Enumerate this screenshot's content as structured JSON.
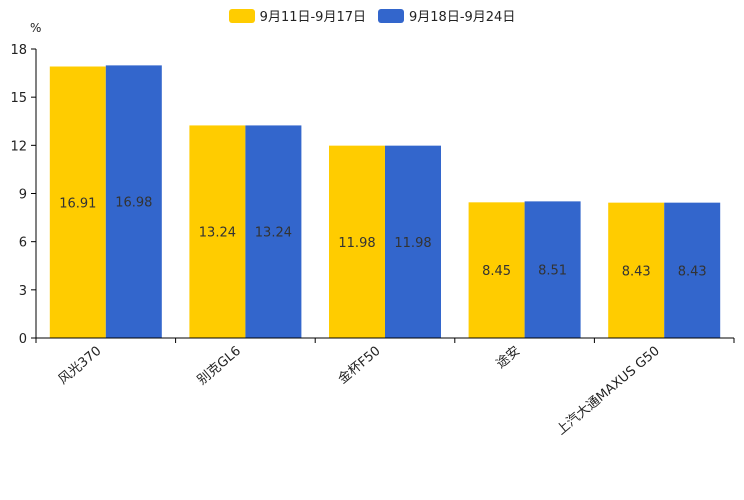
{
  "chart_data": {
    "type": "bar",
    "unit": "%",
    "categories": [
      "风光370",
      "别克GL6",
      "金杯F50",
      "途安",
      "上汽大通MAXUS G50"
    ],
    "series": [
      {
        "name": "9月11日-9月17日",
        "color": "#FFCC00",
        "values": [
          16.91,
          13.24,
          11.98,
          8.45,
          8.43
        ],
        "labels": [
          "16.91",
          "13.24",
          "11.98",
          "8.45",
          "8.43"
        ]
      },
      {
        "name": "9月18日-9月24日",
        "color": "#3366CC",
        "values": [
          16.98,
          13.24,
          11.98,
          8.51,
          8.43
        ],
        "labels": [
          "16.98",
          "13.24",
          "11.98",
          "8.51",
          "8.43"
        ]
      }
    ],
    "ylim": [
      0,
      18
    ],
    "yticks": [
      "0",
      "3",
      "6",
      "9",
      "12",
      "15",
      "18"
    ],
    "legend_position": "top-center"
  }
}
